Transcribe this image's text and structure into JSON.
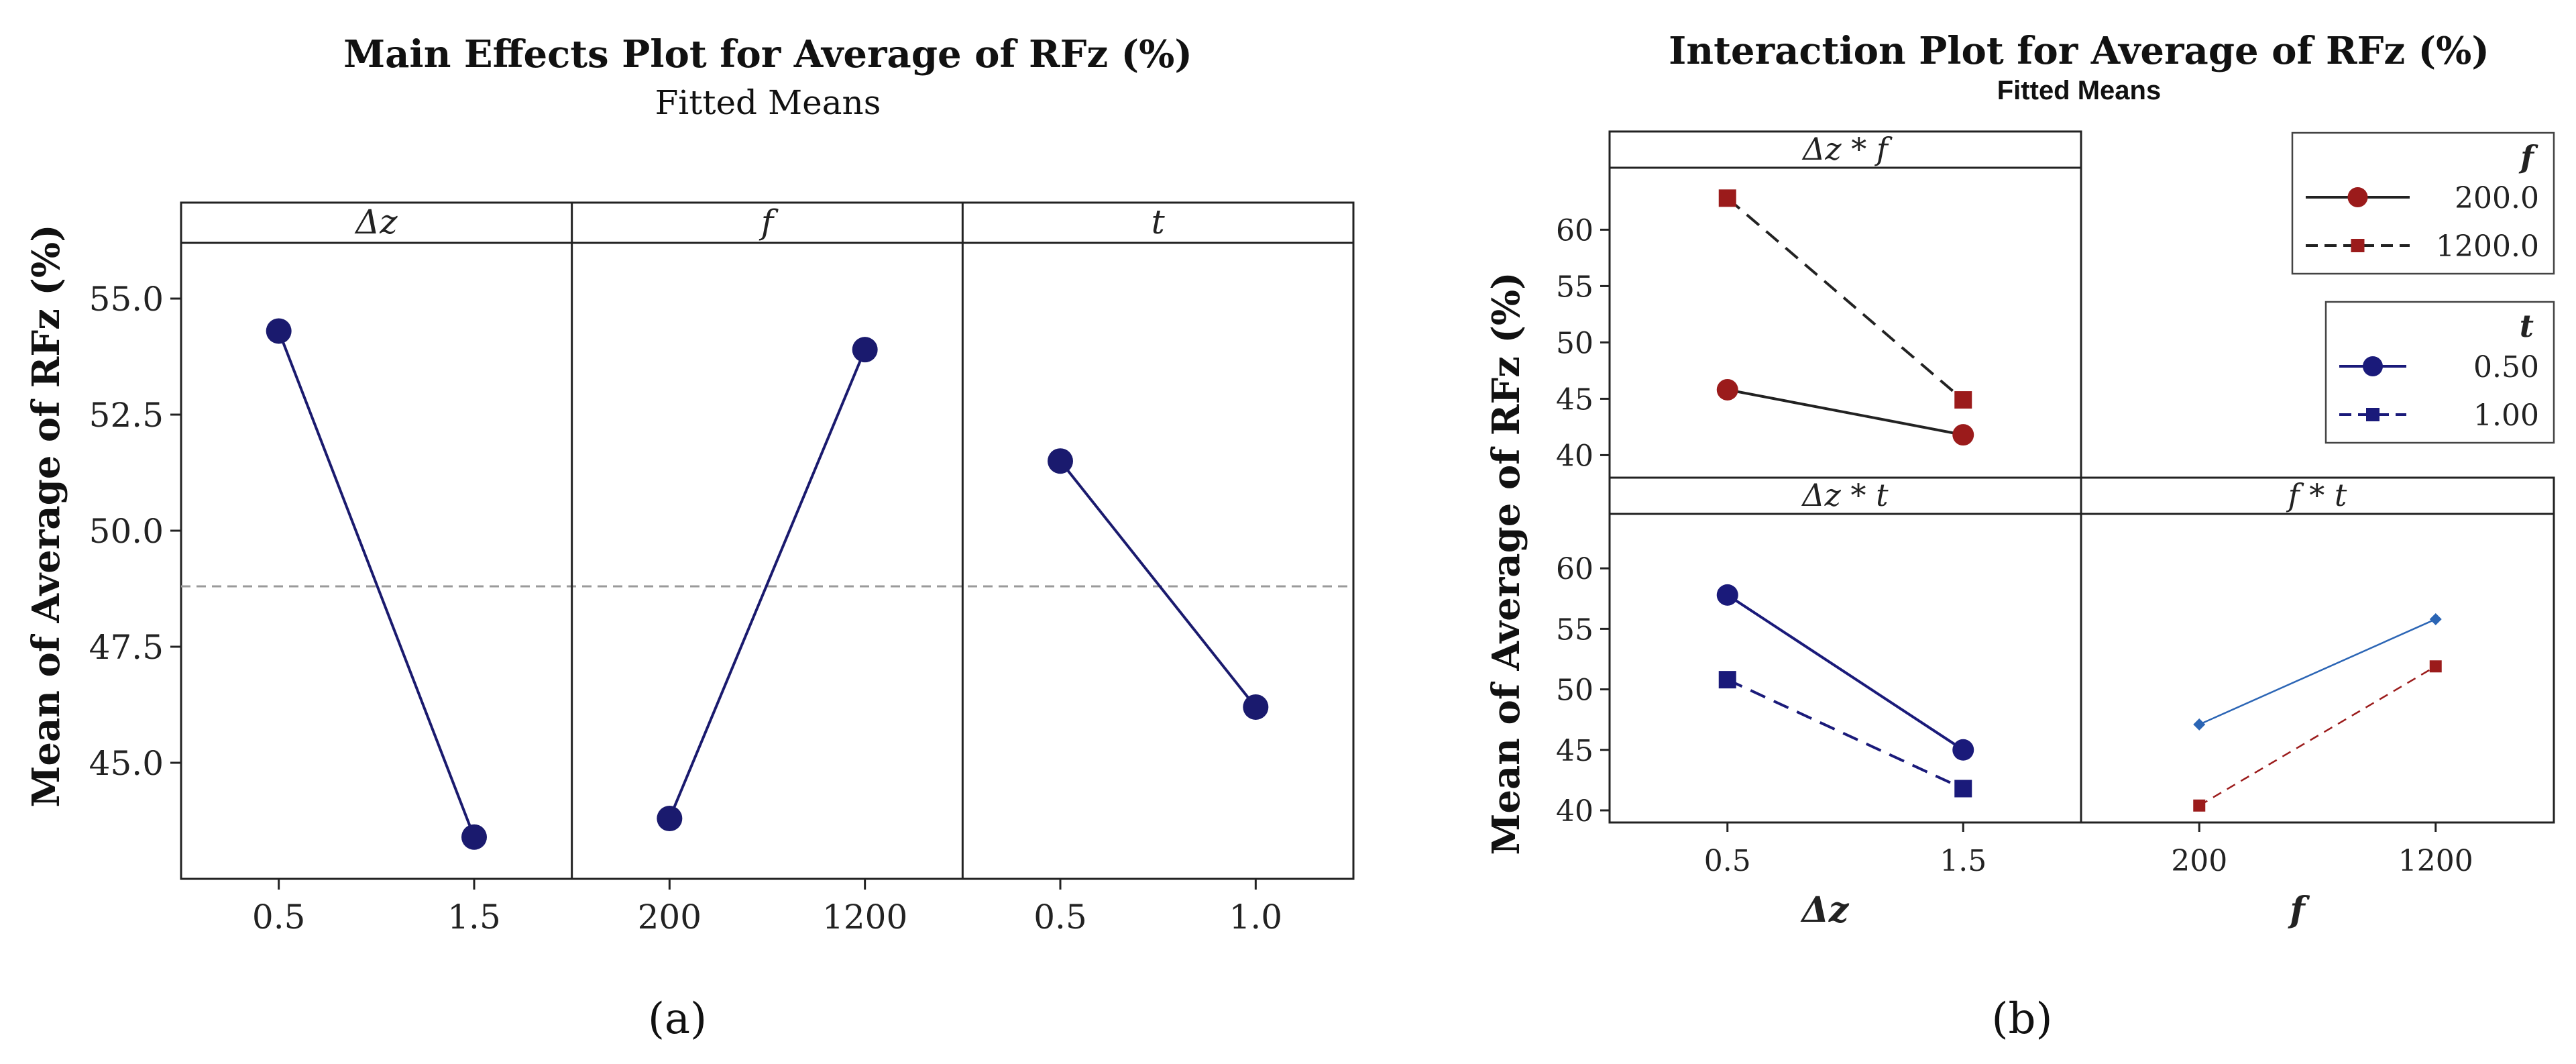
{
  "chart_data": [
    {
      "type": "line",
      "id": "a",
      "title": "Main Effects Plot for Average of RFz (%)",
      "subtitle": "Fitted Means",
      "ylabel": "Mean of Average of RFz (%)",
      "ylim": [
        42.5,
        56.2
      ],
      "yticks": [
        "45.0",
        "47.5",
        "50.0",
        "52.5",
        "55.0"
      ],
      "reference_line": 48.8,
      "line_color": "#1a1a6e",
      "panels": [
        {
          "label": "Δz",
          "categories": [
            "0.5",
            "1.5"
          ],
          "values": [
            54.3,
            43.4
          ]
        },
        {
          "label": "f",
          "categories": [
            "200",
            "1200"
          ],
          "values": [
            43.8,
            53.9
          ]
        },
        {
          "label": "t",
          "categories": [
            "0.5",
            "1.0"
          ],
          "values": [
            51.5,
            46.2
          ]
        }
      ],
      "caption": "(a)"
    },
    {
      "type": "line",
      "id": "b",
      "title": "Interaction Plot for Average of RFz (%)",
      "subtitle": "Fitted Means",
      "ylabel": "Mean of Average of RFz (%)",
      "top_ylim": [
        38.0,
        65.5
      ],
      "top_yticks": [
        "40",
        "45",
        "50",
        "55",
        "60"
      ],
      "bottom_ylim": [
        39.0,
        64.5
      ],
      "bottom_yticks": [
        "40",
        "45",
        "50",
        "55",
        "60"
      ],
      "x_axes": [
        {
          "label": "Δz",
          "ticks": [
            "0.5",
            "1.5"
          ]
        },
        {
          "label": "f",
          "ticks": [
            "200",
            "1200"
          ]
        }
      ],
      "panels": [
        {
          "label": "Δz * f",
          "categories": [
            "0.5",
            "1.5"
          ],
          "series": [
            {
              "name": "200.0",
              "values": [
                45.8,
                41.8
              ],
              "color": "#9b1b1b",
              "style": "solid",
              "marker": "circle"
            },
            {
              "name": "1200.0",
              "values": [
                62.8,
                44.9
              ],
              "color": "#9b1b1b",
              "style": "dashed",
              "marker": "square"
            }
          ]
        },
        {
          "label": "Δz * t",
          "categories": [
            "0.5",
            "1.5"
          ],
          "series": [
            {
              "name": "0.50",
              "values": [
                57.8,
                45.0
              ],
              "color": "#1a1a7a",
              "style": "solid",
              "marker": "circle"
            },
            {
              "name": "1.00",
              "values": [
                50.8,
                41.8
              ],
              "color": "#1a1a7a",
              "style": "dashed",
              "marker": "square"
            }
          ]
        },
        {
          "label": "f * t",
          "categories": [
            "200",
            "1200"
          ],
          "series": [
            {
              "name": "0.50",
              "values": [
                47.1,
                55.8
              ],
              "color": "#2b65b5",
              "style": "solid",
              "marker": "diamond"
            },
            {
              "name": "1.00",
              "values": [
                40.4,
                51.9
              ],
              "color": "#9b1b1b",
              "style": "dashed",
              "marker": "square"
            }
          ]
        }
      ],
      "legends": [
        {
          "title": "f",
          "entries": [
            {
              "name": "200.0",
              "color": "#9b1b1b",
              "style": "solid",
              "marker": "circle"
            },
            {
              "name": "1200.0",
              "color": "#9b1b1b",
              "style": "dashed",
              "marker": "square"
            }
          ]
        },
        {
          "title": "t",
          "entries": [
            {
              "name": "0.50",
              "color": "#1a1a7a",
              "style": "solid",
              "marker": "circle"
            },
            {
              "name": "1.00",
              "color": "#1a1a7a",
              "style": "dashed",
              "marker": "square"
            }
          ]
        }
      ],
      "caption": "(b)"
    }
  ]
}
